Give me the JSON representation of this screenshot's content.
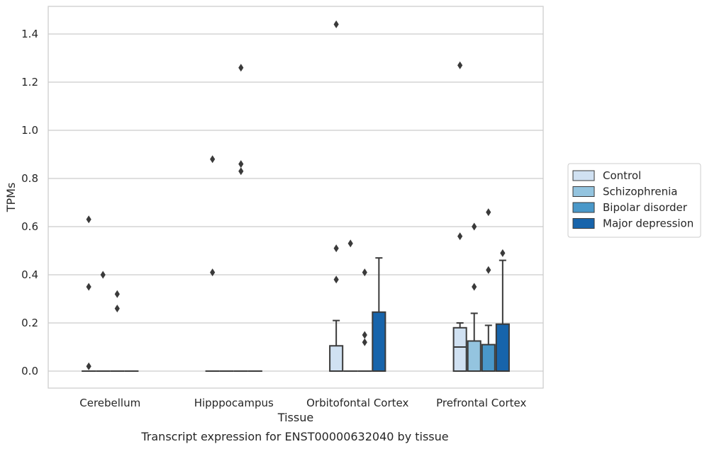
{
  "chart_data": {
    "type": "box",
    "caption": "Transcript expression for ENST00000632040 by tissue",
    "xlabel": "Tissue",
    "ylabel": "TPMs",
    "ylim": [
      -0.07,
      1.52
    ],
    "yticks": [
      0.0,
      0.2,
      0.4,
      0.6,
      0.8,
      1.0,
      1.2,
      1.4
    ],
    "ytick_labels": [
      "0.0",
      "0.2",
      "0.4",
      "0.6",
      "0.8",
      "1.0",
      "1.2",
      "1.4"
    ],
    "grid": true,
    "legend_position": "right",
    "categories": [
      "Cerebellum",
      "Hipppocampus",
      "Orbitofontal Cortex",
      "Prefrontal Cortex"
    ],
    "series": [
      {
        "name": "Control",
        "color": "#d0e1f2",
        "boxes": [
          {
            "q1": 0,
            "median": 0,
            "q3": 0,
            "whisker_low": 0,
            "whisker_high": 0,
            "outliers": [
              0.02,
              0.35,
              0.63
            ]
          },
          {
            "q1": 0,
            "median": 0,
            "q3": 0,
            "whisker_low": 0,
            "whisker_high": 0,
            "outliers": [
              0.41,
              0.88
            ]
          },
          {
            "q1": 0,
            "median": 0,
            "q3": 0.105,
            "whisker_low": 0,
            "whisker_high": 0.21,
            "outliers": [
              0.38,
              0.51,
              1.44
            ]
          },
          {
            "q1": 0,
            "median": 0.1,
            "q3": 0.18,
            "whisker_low": 0,
            "whisker_high": 0.2,
            "outliers": [
              0.56,
              1.27
            ]
          }
        ]
      },
      {
        "name": "Schizophrenia",
        "color": "#94c4df",
        "boxes": [
          {
            "q1": 0,
            "median": 0,
            "q3": 0,
            "whisker_low": 0,
            "whisker_high": 0,
            "outliers": [
              0.4
            ]
          },
          {
            "q1": 0,
            "median": 0,
            "q3": 0,
            "whisker_low": 0,
            "whisker_high": 0,
            "outliers": []
          },
          {
            "q1": 0,
            "median": 0,
            "q3": 0,
            "whisker_low": 0,
            "whisker_high": 0,
            "outliers": [
              0.53
            ]
          },
          {
            "q1": 0,
            "median": 0,
            "q3": 0.125,
            "whisker_low": 0,
            "whisker_high": 0.24,
            "outliers": [
              0.35,
              0.6
            ]
          }
        ]
      },
      {
        "name": "Bipolar disorder",
        "color": "#4a98c9",
        "boxes": [
          {
            "q1": 0,
            "median": 0,
            "q3": 0,
            "whisker_low": 0,
            "whisker_high": 0,
            "outliers": [
              0.26,
              0.32
            ]
          },
          {
            "q1": 0,
            "median": 0,
            "q3": 0,
            "whisker_low": 0,
            "whisker_high": 0,
            "outliers": [
              0.83,
              0.86,
              1.26
            ]
          },
          {
            "q1": 0,
            "median": 0,
            "q3": 0,
            "whisker_low": 0,
            "whisker_high": 0,
            "outliers": [
              0.12,
              0.15,
              0.41
            ]
          },
          {
            "q1": 0,
            "median": 0,
            "q3": 0.11,
            "whisker_low": 0,
            "whisker_high": 0.19,
            "outliers": [
              0.42,
              0.66
            ]
          }
        ]
      },
      {
        "name": "Major depression",
        "color": "#1764ab",
        "boxes": [
          {
            "q1": 0,
            "median": 0,
            "q3": 0,
            "whisker_low": 0,
            "whisker_high": 0,
            "outliers": []
          },
          {
            "q1": 0,
            "median": 0,
            "q3": 0,
            "whisker_low": 0,
            "whisker_high": 0,
            "outliers": []
          },
          {
            "q1": 0,
            "median": 0,
            "q3": 0.245,
            "whisker_low": 0,
            "whisker_high": 0.47,
            "outliers": []
          },
          {
            "q1": 0,
            "median": 0,
            "q3": 0.195,
            "whisker_low": 0,
            "whisker_high": 0.46,
            "outliers": [
              0.49
            ]
          }
        ]
      }
    ]
  }
}
